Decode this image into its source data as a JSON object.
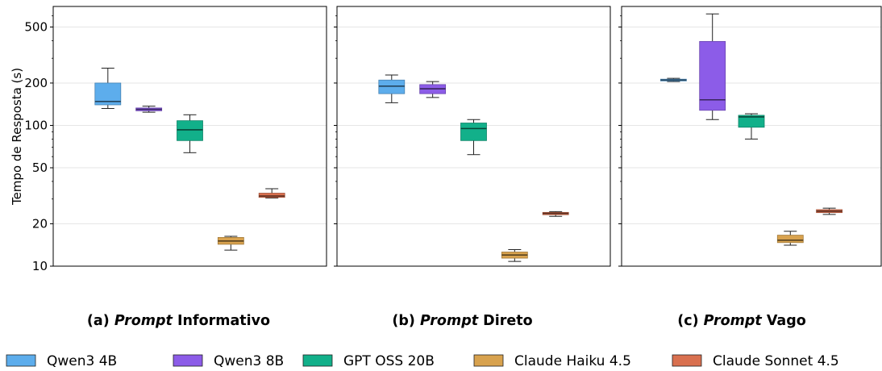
{
  "chart_data": {
    "type": "box",
    "ylabel": "Tempo de Resposta (s)",
    "yscale": "log",
    "ylim": [
      10,
      700
    ],
    "yticks": [
      {
        "value": 10,
        "label": "10"
      },
      {
        "value": 20,
        "label": "20"
      },
      {
        "value": 50,
        "label": "50"
      },
      {
        "value": 100,
        "label": "100"
      },
      {
        "value": 200,
        "label": "200"
      },
      {
        "value": 500,
        "label": "500"
      }
    ],
    "grid": true,
    "legend_position": "bottom",
    "series": [
      {
        "name": "Qwen3 4B",
        "color": "#5DADEC"
      },
      {
        "name": "Qwen3 8B",
        "color": "#8C5CE8"
      },
      {
        "name": "GPT OSS 20B",
        "color": "#12B08A"
      },
      {
        "name": "Claude Haiku 4.5",
        "color": "#D8A24E"
      },
      {
        "name": "Claude Sonnet 4.5",
        "color": "#D9704F"
      }
    ],
    "panels": [
      {
        "caption_prefix": "(a) ",
        "caption_italic": "Prompt",
        "caption_suffix": " Informativo",
        "boxes": [
          {
            "series": "Qwen3 4B",
            "whisker_low": 132,
            "q1": 140,
            "median": 148,
            "q3": 200,
            "whisker_high": 255
          },
          {
            "series": "Qwen3 8B",
            "whisker_low": 124,
            "q1": 127,
            "median": 130,
            "q3": 133,
            "whisker_high": 137
          },
          {
            "series": "GPT OSS 20B",
            "whisker_low": 64,
            "q1": 78,
            "median": 93,
            "q3": 108,
            "whisker_high": 119
          },
          {
            "series": "Claude Haiku 4.5",
            "whisker_low": 13,
            "q1": 14.3,
            "median": 15.1,
            "q3": 16.0,
            "whisker_high": 16.3
          },
          {
            "series": "Claude Sonnet 4.5",
            "whisker_low": 30.5,
            "q1": 30.8,
            "median": 31.5,
            "q3": 33,
            "whisker_high": 35.5
          }
        ]
      },
      {
        "caption_prefix": "(b) ",
        "caption_italic": "Prompt",
        "caption_suffix": " Direto",
        "boxes": [
          {
            "series": "Qwen3 4B",
            "whisker_low": 145,
            "q1": 168,
            "median": 190,
            "q3": 210,
            "whisker_high": 228
          },
          {
            "series": "Qwen3 8B",
            "whisker_low": 158,
            "q1": 168,
            "median": 182,
            "q3": 195,
            "whisker_high": 205
          },
          {
            "series": "GPT OSS 20B",
            "whisker_low": 62,
            "q1": 78,
            "median": 95,
            "q3": 104,
            "whisker_high": 110
          },
          {
            "series": "Claude Haiku 4.5",
            "whisker_low": 10.8,
            "q1": 11.4,
            "median": 12.0,
            "q3": 12.6,
            "whisker_high": 13.1
          },
          {
            "series": "Claude Sonnet 4.5",
            "whisker_low": 22.6,
            "q1": 23.2,
            "median": 23.7,
            "q3": 24.1,
            "whisker_high": 24.4
          }
        ]
      },
      {
        "caption_prefix": "(c) ",
        "caption_italic": "Prompt",
        "caption_suffix": " Vago",
        "boxes": [
          {
            "series": "Qwen3 4B",
            "whisker_low": 205,
            "q1": 207,
            "median": 210,
            "q3": 213,
            "whisker_high": 216
          },
          {
            "series": "Qwen3 8B",
            "whisker_low": 110,
            "q1": 128,
            "median": 152,
            "q3": 395,
            "whisker_high": 620
          },
          {
            "series": "GPT OSS 20B",
            "whisker_low": 80,
            "q1": 97,
            "median": 115,
            "q3": 118,
            "whisker_high": 121
          },
          {
            "series": "Claude Haiku 4.5",
            "whisker_low": 14.1,
            "q1": 14.7,
            "median": 15.3,
            "q3": 16.6,
            "whisker_high": 17.7
          },
          {
            "series": "Claude Sonnet 4.5",
            "whisker_low": 23.3,
            "q1": 24.0,
            "median": 24.6,
            "q3": 25.2,
            "whisker_high": 25.8
          }
        ]
      }
    ]
  }
}
